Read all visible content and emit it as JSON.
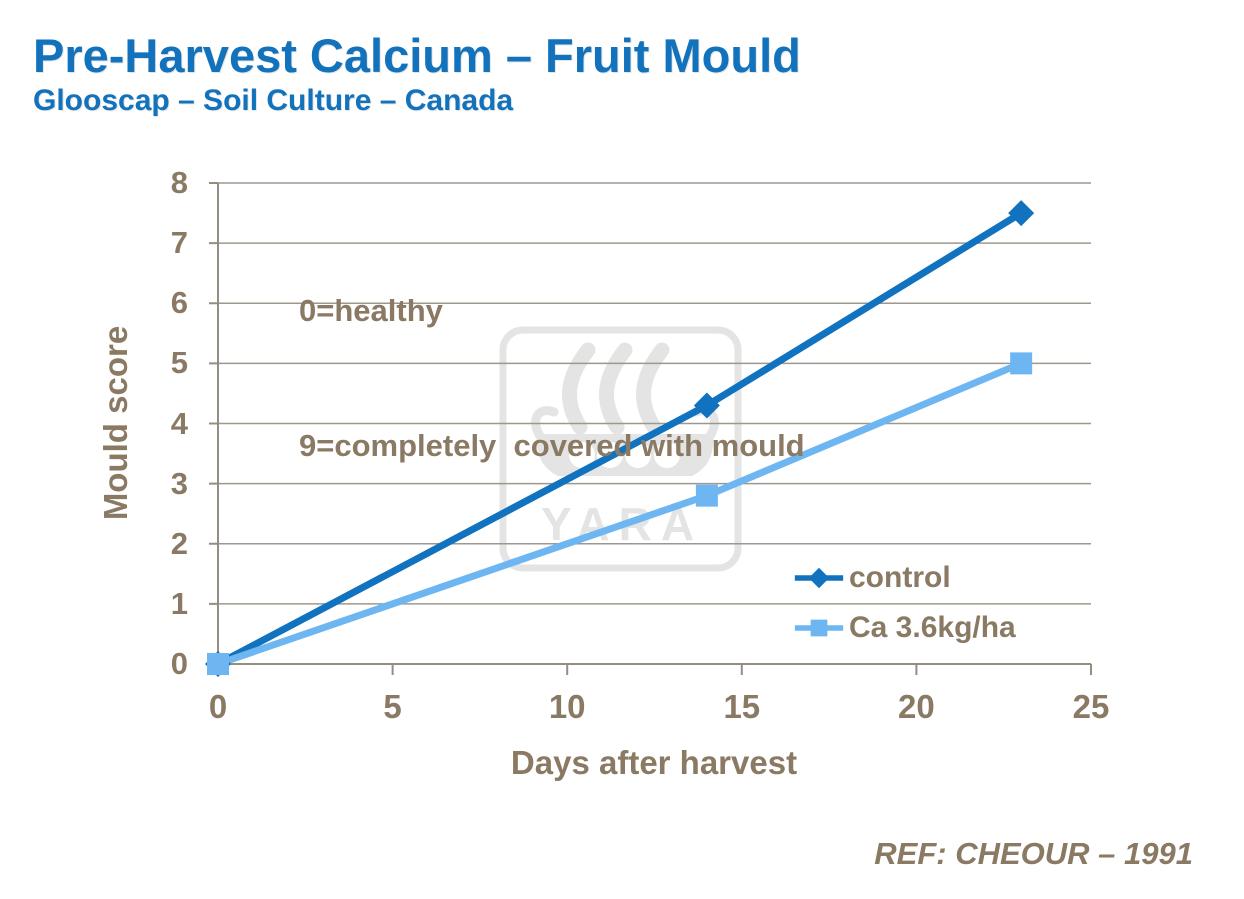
{
  "header": {
    "title": "Pre-Harvest Calcium – Fruit Mould",
    "subtitle": "Glooscap – Soil Culture – Canada"
  },
  "annotation": {
    "line1": "0=healthy",
    "line2": "9=completely  covered with mould"
  },
  "watermark": {
    "text": "YARA",
    "icon": "viking-ship-logo"
  },
  "footer": {
    "reference": "REF: CHEOUR – 1991"
  },
  "colors": {
    "title_blue": "#1272BC",
    "text_brown": "#8A7963",
    "grid": "#9E978D",
    "axis": "#948D82",
    "control_blue": "#1173BF",
    "ca_blue": "#6DB6F2",
    "watermark_gray": "#E4E4E4",
    "background": "#FFFFFF"
  },
  "chart_data": {
    "type": "line",
    "title": "Pre-Harvest Calcium – Fruit Mould",
    "subtitle": "Glooscap – Soil Culture – Canada",
    "xlabel": "Days after harvest",
    "ylabel": "Mould score",
    "x": [
      0,
      14,
      23
    ],
    "series": [
      {
        "name": "control",
        "values": [
          0,
          4.3,
          7.5
        ],
        "color": "#1173BF",
        "marker": "diamond"
      },
      {
        "name": "Ca 3.6kg/ha",
        "values": [
          0,
          2.8,
          5.0
        ],
        "color": "#6DB6F2",
        "marker": "square"
      }
    ],
    "xlim": [
      0,
      25
    ],
    "ylim": [
      0,
      8
    ],
    "xticks": [
      0,
      5,
      10,
      15,
      20,
      25
    ],
    "yticks": [
      0,
      1,
      2,
      3,
      4,
      5,
      6,
      7,
      8
    ],
    "grid": "horizontal",
    "legend_position": "right-center",
    "annotation": [
      "0=healthy",
      "9=completely covered with mould"
    ],
    "reference": "REF: CHEOUR – 1991"
  }
}
